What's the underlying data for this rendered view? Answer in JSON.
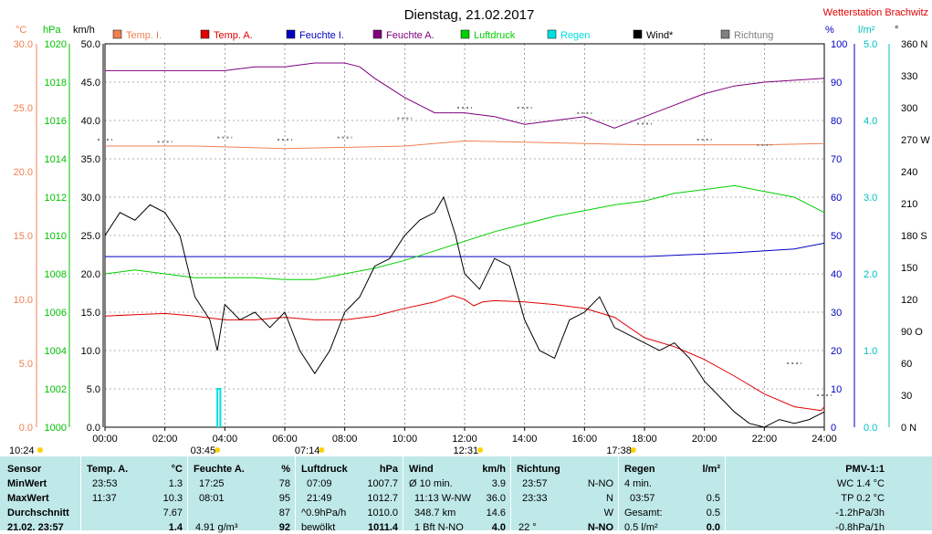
{
  "header": {
    "title": "Dienstag, 21.02.2017",
    "station": "Wetterstation Brachwitz"
  },
  "legend": [
    {
      "label": "Temp. I.",
      "color": "#f08050"
    },
    {
      "label": "Temp. A.",
      "color": "#e00000"
    },
    {
      "label": "Feuchte I.",
      "color": "#0000c0"
    },
    {
      "label": "Feuchte A.",
      "color": "#800080"
    },
    {
      "label": "Luftdruck",
      "color": "#00d000"
    },
    {
      "label": "Regen",
      "color": "#00e0e0"
    },
    {
      "label": "Wind*",
      "color": "#000000"
    },
    {
      "label": "Richtung",
      "color": "#808080"
    }
  ],
  "axes": {
    "temp": {
      "unit": "°C",
      "color": "#f08050",
      "ticks": [
        "0.0",
        "5.0",
        "10.0",
        "15.0",
        "20.0",
        "25.0",
        "30.0"
      ]
    },
    "pressure": {
      "unit": "hPa",
      "color": "#00c000",
      "ticks": [
        "1000",
        "1002",
        "1004",
        "1006",
        "1008",
        "1010",
        "1012",
        "1014",
        "1016",
        "1018",
        "1020"
      ]
    },
    "wind": {
      "unit": "km/h",
      "color": "#000000",
      "ticks": [
        "0.0",
        "5.0",
        "10.0",
        "15.0",
        "20.0",
        "25.0",
        "30.0",
        "35.0",
        "40.0",
        "45.0",
        "50.0"
      ]
    },
    "humidity": {
      "unit": "%",
      "color": "#0000c0",
      "ticks": [
        "0",
        "10",
        "20",
        "30",
        "40",
        "50",
        "60",
        "70",
        "80",
        "90",
        "100"
      ]
    },
    "rain": {
      "unit": "l/m²",
      "color": "#00c0c0",
      "ticks": [
        "0.0",
        "1.0",
        "2.0",
        "3.0",
        "4.0",
        "5.0"
      ]
    },
    "direction": {
      "unit": "°",
      "color": "#000000",
      "ticks": [
        "0 N",
        "30",
        "60",
        "90 O",
        "120",
        "150",
        "180 S",
        "210",
        "240",
        "270 W",
        "300",
        "330",
        "360 N"
      ]
    },
    "x_ticks": [
      "00:00",
      "02:00",
      "04:00",
      "06:00",
      "08:00",
      "10:00",
      "12:00",
      "14:00",
      "16:00",
      "18:00",
      "20:00",
      "22:00",
      "24:00"
    ]
  },
  "time_marks": [
    {
      "label": "10:24",
      "h": 0.4
    },
    {
      "label": "03:45",
      "h": 3.75
    },
    {
      "label": "07:14",
      "h": 7.23
    },
    {
      "label": "12:31",
      "h": 12.52
    },
    {
      "label": "17:38",
      "h": 17.63
    }
  ],
  "chart_data": {
    "type": "line",
    "x_unit": "hour",
    "xlim": [
      0,
      24
    ],
    "series": [
      {
        "name": "Temp. I.",
        "axis": "temp",
        "points": [
          [
            0,
            22.0
          ],
          [
            3,
            22.0
          ],
          [
            6,
            21.8
          ],
          [
            8,
            21.9
          ],
          [
            10,
            22.0
          ],
          [
            12,
            22.4
          ],
          [
            14,
            22.3
          ],
          [
            16,
            22.2
          ],
          [
            18,
            22.1
          ],
          [
            20,
            22.1
          ],
          [
            22,
            22.1
          ],
          [
            24,
            22.2
          ]
        ]
      },
      {
        "name": "Temp. A.",
        "axis": "temp",
        "points": [
          [
            0,
            8.7
          ],
          [
            1,
            8.8
          ],
          [
            2,
            8.9
          ],
          [
            3,
            8.7
          ],
          [
            4,
            8.4
          ],
          [
            5,
            8.4
          ],
          [
            6,
            8.6
          ],
          [
            7,
            8.4
          ],
          [
            8,
            8.4
          ],
          [
            9,
            8.7
          ],
          [
            10,
            9.3
          ],
          [
            11,
            9.8
          ],
          [
            11.6,
            10.3
          ],
          [
            12,
            10.0
          ],
          [
            12.3,
            9.5
          ],
          [
            12.6,
            9.8
          ],
          [
            13,
            9.9
          ],
          [
            14,
            9.8
          ],
          [
            15,
            9.6
          ],
          [
            16,
            9.3
          ],
          [
            17,
            8.6
          ],
          [
            18,
            7.0
          ],
          [
            19,
            6.3
          ],
          [
            20,
            5.3
          ],
          [
            21,
            4.0
          ],
          [
            22,
            2.6
          ],
          [
            23,
            1.6
          ],
          [
            23.9,
            1.3
          ],
          [
            24,
            1.6
          ]
        ]
      },
      {
        "name": "Feuchte I.",
        "axis": "humidity",
        "points": [
          [
            0,
            44.5
          ],
          [
            6,
            44.5
          ],
          [
            12,
            44.5
          ],
          [
            18,
            44.5
          ],
          [
            21,
            45.5
          ],
          [
            23,
            46.5
          ],
          [
            24,
            48.0
          ]
        ]
      },
      {
        "name": "Feuchte A.",
        "axis": "humidity",
        "points": [
          [
            0,
            93
          ],
          [
            2,
            93
          ],
          [
            4,
            93
          ],
          [
            5,
            94
          ],
          [
            6,
            94
          ],
          [
            7,
            95
          ],
          [
            8,
            95
          ],
          [
            8.5,
            94
          ],
          [
            9,
            91
          ],
          [
            10,
            86
          ],
          [
            11,
            82
          ],
          [
            12,
            82
          ],
          [
            13,
            81
          ],
          [
            14,
            79
          ],
          [
            15,
            80
          ],
          [
            16,
            81
          ],
          [
            17,
            78
          ],
          [
            18,
            81
          ],
          [
            19,
            84
          ],
          [
            20,
            87
          ],
          [
            21,
            89
          ],
          [
            22,
            90
          ],
          [
            23,
            90.5
          ],
          [
            24,
            91
          ]
        ]
      },
      {
        "name": "Luftdruck",
        "axis": "pressure",
        "points": [
          [
            0,
            1008.0
          ],
          [
            1,
            1008.2
          ],
          [
            2,
            1008.0
          ],
          [
            3,
            1007.8
          ],
          [
            4,
            1007.8
          ],
          [
            5,
            1007.8
          ],
          [
            6,
            1007.7
          ],
          [
            7,
            1007.7
          ],
          [
            8,
            1008.0
          ],
          [
            9,
            1008.3
          ],
          [
            10,
            1008.7
          ],
          [
            11,
            1009.2
          ],
          [
            12,
            1009.7
          ],
          [
            13,
            1010.2
          ],
          [
            14,
            1010.6
          ],
          [
            15,
            1011.0
          ],
          [
            16,
            1011.3
          ],
          [
            17,
            1011.6
          ],
          [
            18,
            1011.8
          ],
          [
            19,
            1012.2
          ],
          [
            20,
            1012.4
          ],
          [
            21,
            1012.6
          ],
          [
            22,
            1012.3
          ],
          [
            23,
            1012.0
          ],
          [
            24,
            1011.2
          ]
        ]
      },
      {
        "name": "Regen",
        "axis": "rain",
        "points": [
          [
            3.75,
            0.0
          ],
          [
            3.75,
            0.5
          ],
          [
            3.85,
            0.5
          ],
          [
            3.85,
            0.0
          ]
        ]
      },
      {
        "name": "Wind*",
        "axis": "wind",
        "points": [
          [
            0,
            25
          ],
          [
            0.5,
            28
          ],
          [
            1,
            27
          ],
          [
            1.5,
            29
          ],
          [
            2,
            28
          ],
          [
            2.5,
            25
          ],
          [
            3,
            17
          ],
          [
            3.5,
            14
          ],
          [
            3.75,
            10
          ],
          [
            4,
            16
          ],
          [
            4.5,
            14
          ],
          [
            5,
            15
          ],
          [
            5.5,
            13
          ],
          [
            6,
            15
          ],
          [
            6.5,
            10
          ],
          [
            7,
            7
          ],
          [
            7.5,
            10
          ],
          [
            8,
            15
          ],
          [
            8.5,
            17
          ],
          [
            9,
            21
          ],
          [
            9.5,
            22
          ],
          [
            10,
            25
          ],
          [
            10.5,
            27
          ],
          [
            11,
            28
          ],
          [
            11.3,
            30
          ],
          [
            11.7,
            25
          ],
          [
            12,
            20
          ],
          [
            12.5,
            18
          ],
          [
            13,
            22
          ],
          [
            13.5,
            21
          ],
          [
            14,
            14
          ],
          [
            14.5,
            10
          ],
          [
            15,
            9
          ],
          [
            15.5,
            14
          ],
          [
            16,
            15
          ],
          [
            16.5,
            17
          ],
          [
            17,
            13
          ],
          [
            17.5,
            12
          ],
          [
            18,
            11
          ],
          [
            18.5,
            10
          ],
          [
            19,
            11
          ],
          [
            19.5,
            9
          ],
          [
            20,
            6
          ],
          [
            20.5,
            4
          ],
          [
            21,
            2
          ],
          [
            21.5,
            0.5
          ],
          [
            22,
            0
          ],
          [
            22.5,
            1
          ],
          [
            23,
            0.5
          ],
          [
            23.5,
            1
          ],
          [
            24,
            2
          ]
        ]
      },
      {
        "name": "Richtung",
        "axis": "direction",
        "points": [
          [
            0,
            270
          ],
          [
            2,
            268
          ],
          [
            4,
            272
          ],
          [
            6,
            270
          ],
          [
            8,
            272
          ],
          [
            10,
            290
          ],
          [
            12,
            300
          ],
          [
            14,
            300
          ],
          [
            16,
            295
          ],
          [
            18,
            285
          ],
          [
            20,
            270
          ],
          [
            22,
            265
          ],
          [
            23,
            60
          ],
          [
            24,
            30
          ]
        ]
      }
    ]
  },
  "table": {
    "sensor": {
      "head": "Sensor",
      "rows": [
        "MinWert",
        "MaxWert",
        "Durchschnitt",
        "21.02. 23:57"
      ]
    },
    "temp": {
      "head": "Temp. A.",
      "unit": "°C",
      "rows": [
        [
          "23:53",
          "1.3"
        ],
        [
          "11:37",
          "10.3"
        ],
        [
          "",
          "7.67"
        ],
        [
          "",
          "1.4"
        ]
      ]
    },
    "humidity": {
      "head": "Feuchte A.",
      "unit": "%",
      "rows": [
        [
          "17:25",
          "78"
        ],
        [
          "08:01",
          "95"
        ],
        [
          "",
          "87"
        ],
        [
          "4.91 g/m³",
          "92"
        ]
      ]
    },
    "pressure": {
      "head": "Luftdruck",
      "unit": "hPa",
      "rows": [
        [
          "07:09",
          "1007.7"
        ],
        [
          "21:49",
          "1012.7"
        ],
        [
          "^0.9hPa/h",
          "1010.0"
        ],
        [
          "bewölkt",
          "1011.4"
        ]
      ]
    },
    "wind": {
      "head": "Wind",
      "unit": "km/h",
      "rows": [
        [
          "Ø 10 min.",
          "3.9"
        ],
        [
          "11:13  W-NW",
          "36.0"
        ],
        [
          "348.7 km",
          "14.6"
        ],
        [
          "1 Bft  N-NO",
          "4.0"
        ]
      ]
    },
    "direction": {
      "head": "Richtung",
      "rows": [
        [
          "23:57",
          "N-NO"
        ],
        [
          "23:33",
          "N"
        ],
        [
          "",
          "W"
        ],
        [
          "22 °",
          "N-NO"
        ]
      ]
    },
    "rain": {
      "head": "Regen",
      "unit": "l/m²",
      "rows": [
        [
          "4 min.",
          ""
        ],
        [
          "03:57",
          "0.5"
        ],
        [
          "Gesamt:",
          "0.5"
        ],
        [
          "0.5 l/m²",
          "0.0"
        ]
      ]
    },
    "pmv": {
      "head": "PMV-1:1",
      "rows": [
        "WC 1.4 °C",
        "TP 0.2 °C",
        "-1.2hPa/3h",
        "-0.8hPa/1h"
      ]
    }
  }
}
